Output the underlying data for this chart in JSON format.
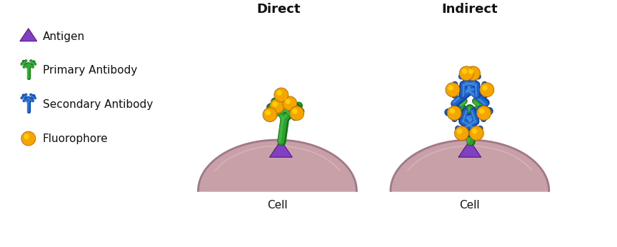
{
  "title_direct": "Direct",
  "title_indirect": "Indirect",
  "label_antigen": "Antigen",
  "label_primary": "Primary Antibody",
  "label_secondary": "Secondary Antibody",
  "label_fluorophore": "Fluorophore",
  "label_cell": "Cell",
  "color_antigen": "#8040C0",
  "color_antigen_edge": "#5A1090",
  "color_primary_dark": "#1A6E1A",
  "color_primary_mid": "#2E9E2E",
  "color_primary_light": "#40C040",
  "color_secondary_dark": "#1040A0",
  "color_secondary_mid": "#2060C8",
  "color_secondary_light": "#4090E0",
  "color_fluorophore_outer": "#F5A400",
  "color_fluorophore_inner": "#FFD700",
  "color_cell_fill": "#C8A0A8",
  "color_cell_edge": "#A07888",
  "bg_color": "#FFFFFF",
  "title_fontsize": 13,
  "label_fontsize": 11,
  "cell_label_fontsize": 11
}
